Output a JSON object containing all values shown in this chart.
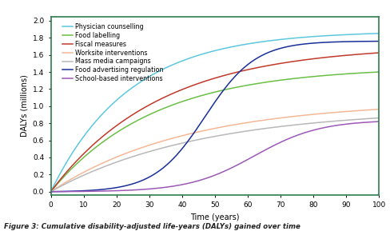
{
  "title": "Figure 3: Cumulative disability-adjusted life-years (DALYs) gained over time",
  "xlabel": "Time (years)",
  "ylabel": "DALYs (millions)",
  "xlim": [
    0,
    100
  ],
  "ylim": [
    -0.04,
    2.05
  ],
  "yticks": [
    0.0,
    0.2,
    0.4,
    0.6,
    0.8,
    1.0,
    1.2,
    1.4,
    1.6,
    1.8,
    2.0
  ],
  "xticks": [
    0,
    10,
    20,
    30,
    40,
    50,
    60,
    70,
    80,
    90,
    100
  ],
  "series": [
    {
      "label": "Physician counselling",
      "color": "#5bc8e0",
      "end": 1.88,
      "type": "concave",
      "rate": 0.042
    },
    {
      "label": "Food labelling",
      "color": "#6abf45",
      "end": 1.46,
      "type": "concave",
      "rate": 0.032
    },
    {
      "label": "Fiscal measures",
      "color": "#c0392b",
      "end": 1.71,
      "type": "concave",
      "rate": 0.03
    },
    {
      "label": "Worksite interventions",
      "color": "#f4b896",
      "end": 1.06,
      "type": "concave",
      "rate": 0.024
    },
    {
      "label": "Mass media campaigns",
      "color": "#b8b8b8",
      "end": 0.97,
      "type": "concave",
      "rate": 0.022
    },
    {
      "label": "Food advertising regulation",
      "color": "#1a2f99",
      "end": 1.76,
      "type": "sigmoid",
      "k": 0.13,
      "mid": 47
    },
    {
      "label": "School-based interventions",
      "color": "#9b59b6",
      "end": 0.82,
      "type": "sigmoid",
      "k": 0.1,
      "mid": 62
    }
  ],
  "background_color": "#ffffff",
  "border_color": "#2e7d4f",
  "figsize": [
    4.89,
    2.94
  ],
  "dpi": 100,
  "caption": "Figure 3: Cumulative disability-adjusted life-years (DALYs) gained over time"
}
